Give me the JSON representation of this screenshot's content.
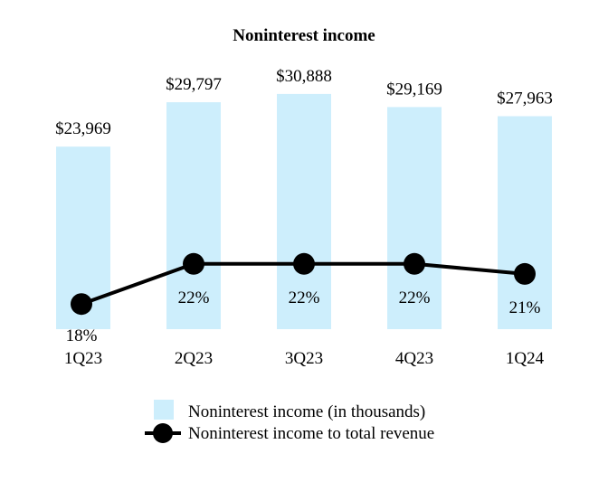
{
  "chart_data": {
    "type": "bar",
    "title": "Noninterest income",
    "categories": [
      "1Q23",
      "2Q23",
      "3Q23",
      "4Q23",
      "1Q24"
    ],
    "series": [
      {
        "name": "Noninterest income (in thousands)",
        "kind": "bar",
        "values": [
          23969,
          29797,
          30888,
          29169,
          27963
        ],
        "labels": [
          "$23,969",
          "$29,797",
          "$30,888",
          "$29,169",
          "$27,963"
        ],
        "color": "#cdeefc"
      },
      {
        "name": "Noninterest income to total revenue",
        "kind": "line",
        "values": [
          18,
          22,
          22,
          22,
          21
        ],
        "labels": [
          "18%",
          "22%",
          "22%",
          "22%",
          "21%"
        ],
        "color": "#000000"
      }
    ],
    "xlabel": "",
    "ylabel": "",
    "ylim": [
      0,
      38000
    ],
    "line_ylim": [
      0,
      30
    ],
    "legend_position": "bottom",
    "grid": false
  }
}
